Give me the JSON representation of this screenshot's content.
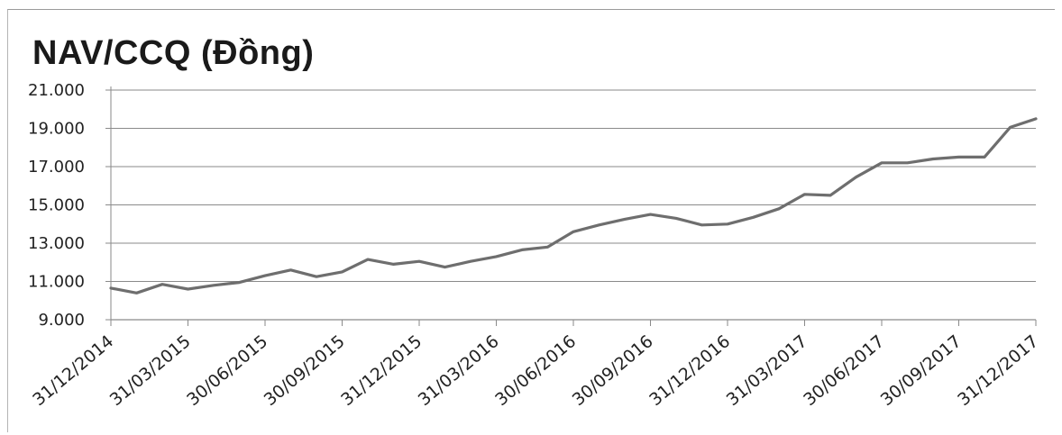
{
  "chart_data": {
    "type": "line",
    "title": "NAV/CCQ (Đồng)",
    "xlabel": "",
    "ylabel": "",
    "ylim": [
      9000,
      21000
    ],
    "y_ticks": [
      "9.000",
      "11.000",
      "13.000",
      "15.000",
      "17.000",
      "19.000",
      "21.000"
    ],
    "y_tick_values": [
      9000,
      11000,
      13000,
      15000,
      17000,
      19000,
      21000
    ],
    "x_tick_labels": [
      "31/12/2014",
      "31/03/2015",
      "30/06/2015",
      "30/09/2015",
      "31/12/2015",
      "31/03/2016",
      "30/06/2016",
      "30/09/2016",
      "31/12/2016",
      "31/03/2017",
      "30/06/2017",
      "30/09/2017",
      "31/12/2017"
    ],
    "grid": true,
    "legend": "none",
    "line_color": "#6e6e6e",
    "series": [
      {
        "values": [
          10650,
          10400,
          10850,
          10600,
          10800,
          10950,
          11300,
          11600,
          11250,
          11500,
          12150,
          11900,
          12050,
          11750,
          12050,
          12300,
          12650,
          12800,
          13600,
          13950,
          14250,
          14500,
          14300,
          13950,
          14000,
          14350,
          14800,
          15550,
          15500,
          16450,
          17200,
          17200,
          17400,
          17500,
          17500,
          19050,
          19500
        ]
      }
    ]
  }
}
